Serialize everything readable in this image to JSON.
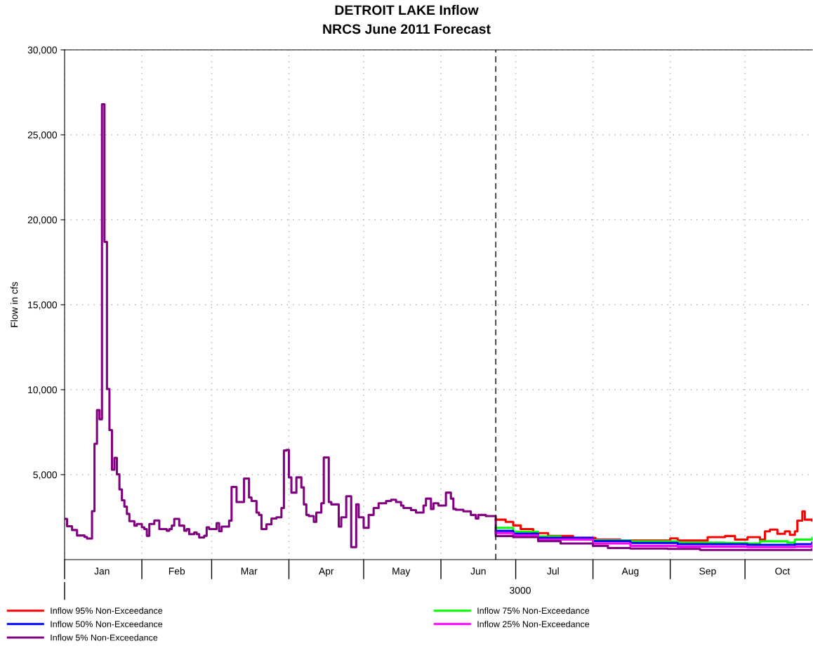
{
  "chart_data": {
    "type": "step",
    "title": "DETROIT LAKE Inflow",
    "subtitle": "NRCS June 2011 Forecast",
    "ylabel": "Flow in cfs",
    "xlim": [
      "3000-01-01",
      "3000-10-28"
    ],
    "xticks": [
      {
        "value": "3000-01-01",
        "label": null
      },
      {
        "value": "3000-01-16",
        "label": "Jan"
      },
      {
        "value": "3000-02-01",
        "label": null
      },
      {
        "value": "3000-02-15",
        "label": "Feb"
      },
      {
        "value": "3000-03-01",
        "label": null
      },
      {
        "value": "3000-03-16",
        "label": "Mar"
      },
      {
        "value": "3000-04-01",
        "label": null
      },
      {
        "value": "3000-04-16",
        "label": "Apr"
      },
      {
        "value": "3000-05-01",
        "label": null
      },
      {
        "value": "3000-05-16",
        "label": "May"
      },
      {
        "value": "3000-06-01",
        "label": null
      },
      {
        "value": "3000-06-16",
        "label": "Jun"
      },
      {
        "value": "3000-07-01",
        "label": null
      },
      {
        "value": "3000-07-16",
        "label": "Jul"
      },
      {
        "value": "3000-08-01",
        "label": null
      },
      {
        "value": "3000-08-16",
        "label": "Aug"
      },
      {
        "value": "3000-09-01",
        "label": null
      },
      {
        "value": "3000-09-16",
        "label": "Sep"
      },
      {
        "value": "3000-10-01",
        "label": null
      },
      {
        "value": "3000-10-16",
        "label": "Oct"
      }
    ],
    "annotations": [
      "3000"
    ],
    "ylim": [
      0,
      30000
    ],
    "yticks": [
      {
        "value": 5000,
        "label": "5,000"
      },
      {
        "value": 10000,
        "label": "10,000"
      },
      {
        "value": 15000,
        "label": "15,000"
      },
      {
        "value": 20000,
        "label": "20,000"
      },
      {
        "value": 25000,
        "label": "25,000"
      },
      {
        "value": 30000,
        "label": "30,000"
      }
    ],
    "grid": true,
    "legend": "bottom",
    "marker": "none",
    "line_style": "solid",
    "ref_lines": [
      {
        "axis": "x",
        "value": "3000-06-23",
        "label": null,
        "color": "#000000",
        "line_style": "dashed"
      }
    ],
    "series": [
      {
        "name": "Inflow 95% Non-Exceedance",
        "color": "#ff0000",
        "x": [
          "3000-06-23",
          "3000-06-27",
          "3000-06-30",
          "3000-07-03",
          "3000-07-08",
          "3000-07-14",
          "3000-07-24",
          "3000-08-02",
          "3000-08-12",
          "3000-08-21",
          "3000-09-01",
          "3000-09-04",
          "3000-09-13",
          "3000-09-16",
          "3000-09-23",
          "3000-09-27",
          "3000-10-02",
          "3000-10-07",
          "3000-10-09",
          "3000-10-11",
          "3000-10-14",
          "3000-10-17",
          "3000-10-19",
          "3000-10-21",
          "3000-10-22",
          "3000-10-24",
          "3000-10-25",
          "3000-10-28"
        ],
        "values": [
          2350,
          2220,
          2010,
          1800,
          1560,
          1390,
          1280,
          1180,
          1120,
          1120,
          1250,
          1120,
          1120,
          1320,
          1390,
          1180,
          1320,
          1180,
          1660,
          1770,
          1520,
          1660,
          1460,
          1660,
          2290,
          2840,
          2350,
          2290
        ]
      },
      {
        "name": "Inflow 75% Non-Exceedance",
        "color": "#00ff00",
        "x": [
          "3000-06-23",
          "3000-06-30",
          "3000-07-10",
          "3000-07-19",
          "3000-08-01",
          "3000-08-16",
          "3000-09-04",
          "3000-09-23",
          "3000-10-02",
          "3000-10-07",
          "3000-10-18",
          "3000-10-21",
          "3000-10-28"
        ],
        "values": [
          1870,
          1640,
          1360,
          1240,
          1140,
          1070,
          1000,
          980,
          950,
          1080,
          1000,
          1180,
          1280
        ]
      },
      {
        "name": "Inflow 50% Non-Exceedance",
        "color": "#0000ff",
        "x": [
          "3000-06-23",
          "3000-06-30",
          "3000-07-10",
          "3000-08-01",
          "3000-08-16",
          "3000-09-04",
          "3000-10-02",
          "3000-10-21",
          "3000-10-28"
        ],
        "values": [
          1690,
          1530,
          1280,
          1090,
          980,
          910,
          870,
          910,
          1000
        ]
      },
      {
        "name": "Inflow 25% Non-Exceedance",
        "color": "#ff00ff",
        "x": [
          "3000-06-23",
          "3000-06-30",
          "3000-07-10",
          "3000-08-01",
          "3000-08-16",
          "3000-09-04",
          "3000-10-02",
          "3000-10-21",
          "3000-10-28"
        ],
        "values": [
          1560,
          1420,
          1180,
          950,
          810,
          760,
          730,
          760,
          870
        ]
      },
      {
        "name": "Inflow 5% Non-Exceedance",
        "color": "#800080",
        "x": [
          "3000-01-01",
          "3000-01-02",
          "3000-01-04",
          "3000-01-06",
          "3000-01-09",
          "3000-01-10",
          "3000-01-12",
          "3000-01-13",
          "3000-01-14",
          "3000-01-15",
          "3000-01-16",
          "3000-01-17",
          "3000-01-18",
          "3000-01-19",
          "3000-01-20",
          "3000-01-21",
          "3000-01-22",
          "3000-01-23",
          "3000-01-24",
          "3000-01-25",
          "3000-01-26",
          "3000-01-27",
          "3000-01-29",
          "3000-01-30",
          "3000-02-01",
          "3000-02-02",
          "3000-02-03",
          "3000-02-04",
          "3000-02-06",
          "3000-02-08",
          "3000-02-11",
          "3000-02-12",
          "3000-02-13",
          "3000-02-14",
          "3000-02-16",
          "3000-02-18",
          "3000-02-19",
          "3000-02-20",
          "3000-02-22",
          "3000-02-23",
          "3000-02-24",
          "3000-02-26",
          "3000-02-27",
          "3000-02-28",
          "3000-03-03",
          "3000-03-04",
          "3000-03-05",
          "3000-03-08",
          "3000-03-09",
          "3000-03-11",
          "3000-03-14",
          "3000-03-16",
          "3000-03-17",
          "3000-03-19",
          "3000-03-20",
          "3000-03-21",
          "3000-03-23",
          "3000-03-25",
          "3000-03-27",
          "3000-03-29",
          "3000-03-30",
          "3000-03-31",
          "3000-04-01",
          "3000-04-02",
          "3000-04-04",
          "3000-04-06",
          "3000-04-07",
          "3000-04-08",
          "3000-04-09",
          "3000-04-11",
          "3000-04-12",
          "3000-04-14",
          "3000-04-15",
          "3000-04-17",
          "3000-04-18",
          "3000-04-21",
          "3000-04-22",
          "3000-04-24",
          "3000-04-26",
          "3000-04-28",
          "3000-04-29",
          "3000-05-01",
          "3000-05-03",
          "3000-05-05",
          "3000-05-07",
          "3000-05-10",
          "3000-05-12",
          "3000-05-14",
          "3000-05-16",
          "3000-05-17",
          "3000-05-20",
          "3000-05-22",
          "3000-05-25",
          "3000-05-26",
          "3000-05-28",
          "3000-05-29",
          "3000-05-31",
          "3000-06-03",
          "3000-06-05",
          "3000-06-06",
          "3000-06-07",
          "3000-06-10",
          "3000-06-13",
          "3000-06-15",
          "3000-06-16",
          "3000-06-19",
          "3000-06-23",
          "3000-06-30",
          "3000-07-10",
          "3000-07-19",
          "3000-08-01",
          "3000-08-07",
          "3000-08-16",
          "3000-08-31",
          "3000-09-13",
          "3000-10-02",
          "3000-10-28"
        ],
        "values": [
          2400,
          1960,
          1740,
          1420,
          1330,
          1240,
          2850,
          6820,
          8800,
          8260,
          26800,
          18700,
          10040,
          7620,
          5290,
          5990,
          5020,
          4130,
          3490,
          3120,
          2690,
          2260,
          2000,
          2100,
          1900,
          1800,
          1400,
          2100,
          2300,
          1800,
          1700,
          1800,
          2000,
          2400,
          2000,
          1700,
          1800,
          1500,
          1600,
          1500,
          1300,
          1400,
          1900,
          1800,
          2150,
          1670,
          1940,
          2290,
          4280,
          3390,
          4770,
          3660,
          3450,
          2770,
          2630,
          1800,
          2080,
          2420,
          2490,
          3040,
          6420,
          6460,
          4840,
          3940,
          4840,
          4250,
          3250,
          2630,
          2560,
          2220,
          2770,
          3320,
          6010,
          3390,
          3250,
          1940,
          2490,
          3730,
          730,
          3250,
          2490,
          1870,
          2630,
          3040,
          3320,
          3450,
          3520,
          3390,
          3180,
          3040,
          2910,
          2770,
          3180,
          3590,
          2980,
          3320,
          3180,
          3940,
          3590,
          2980,
          2930,
          2840,
          2630,
          2420,
          2630,
          2560,
          1390,
          1320,
          1090,
          950,
          810,
          680,
          650,
          630,
          570,
          570,
          600
        ]
      }
    ]
  }
}
